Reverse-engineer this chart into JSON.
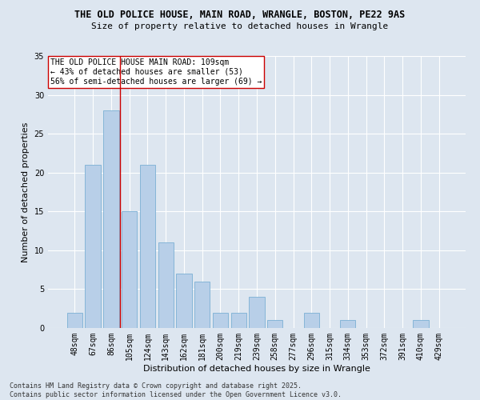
{
  "title1": "THE OLD POLICE HOUSE, MAIN ROAD, WRANGLE, BOSTON, PE22 9AS",
  "title2": "Size of property relative to detached houses in Wrangle",
  "xlabel": "Distribution of detached houses by size in Wrangle",
  "ylabel": "Number of detached properties",
  "categories": [
    "48sqm",
    "67sqm",
    "86sqm",
    "105sqm",
    "124sqm",
    "143sqm",
    "162sqm",
    "181sqm",
    "200sqm",
    "219sqm",
    "239sqm",
    "258sqm",
    "277sqm",
    "296sqm",
    "315sqm",
    "334sqm",
    "353sqm",
    "372sqm",
    "391sqm",
    "410sqm",
    "429sqm"
  ],
  "values": [
    2,
    21,
    28,
    15,
    21,
    11,
    7,
    6,
    2,
    2,
    4,
    1,
    0,
    2,
    0,
    1,
    0,
    0,
    0,
    1,
    0
  ],
  "bar_color": "#b8cfe8",
  "bar_edgecolor": "#7aafd4",
  "background_color": "#dde6f0",
  "grid_color": "#ffffff",
  "vline_x": 2.5,
  "vline_color": "#cc0000",
  "annotation_lines": [
    "THE OLD POLICE HOUSE MAIN ROAD: 109sqm",
    "← 43% of detached houses are smaller (53)",
    "56% of semi-detached houses are larger (69) →"
  ],
  "annotation_box_color": "#ffffff",
  "annotation_box_edgecolor": "#cc0000",
  "ylim": [
    0,
    35
  ],
  "yticks": [
    0,
    5,
    10,
    15,
    20,
    25,
    30,
    35
  ],
  "footnote": "Contains HM Land Registry data © Crown copyright and database right 2025.\nContains public sector information licensed under the Open Government Licence v3.0.",
  "title_fontsize": 8.5,
  "subtitle_fontsize": 8,
  "xlabel_fontsize": 8,
  "ylabel_fontsize": 8,
  "tick_fontsize": 7,
  "annotation_fontsize": 7,
  "footnote_fontsize": 6
}
